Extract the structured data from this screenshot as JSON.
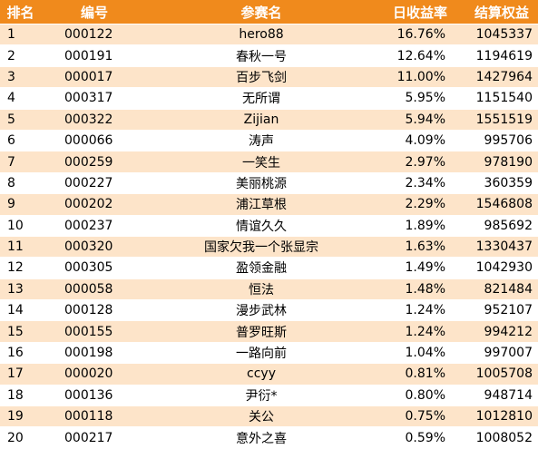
{
  "headers": {
    "rank": "排名",
    "id": "编号",
    "name": "参赛名",
    "return": "日收益率",
    "equity": "结算权益"
  },
  "rows": [
    {
      "rank": "1",
      "id": "000122",
      "name": "hero88",
      "return": "16.76%",
      "equity": "1045337"
    },
    {
      "rank": "2",
      "id": "000191",
      "name": "春秋一号",
      "return": "12.64%",
      "equity": "1194619"
    },
    {
      "rank": "3",
      "id": "000017",
      "name": "百步飞剑",
      "return": "11.00%",
      "equity": "1427964"
    },
    {
      "rank": "4",
      "id": "000317",
      "name": "无所谓",
      "return": "5.95%",
      "equity": "1151540"
    },
    {
      "rank": "5",
      "id": "000322",
      "name": "Zijian",
      "return": "5.94%",
      "equity": "1551519"
    },
    {
      "rank": "6",
      "id": "000066",
      "name": "涛声",
      "return": "4.09%",
      "equity": "995706"
    },
    {
      "rank": "7",
      "id": "000259",
      "name": "一笑生",
      "return": "2.97%",
      "equity": "978190"
    },
    {
      "rank": "8",
      "id": "000227",
      "name": "美丽桃源",
      "return": "2.34%",
      "equity": "360359"
    },
    {
      "rank": "9",
      "id": "000202",
      "name": "浦江草根",
      "return": "2.29%",
      "equity": "1546808"
    },
    {
      "rank": "10",
      "id": "000237",
      "name": "情谊久久",
      "return": "1.89%",
      "equity": "985692"
    },
    {
      "rank": "11",
      "id": "000320",
      "name": "国家欠我一个张显宗",
      "return": "1.63%",
      "equity": "1330437"
    },
    {
      "rank": "12",
      "id": "000305",
      "name": "盈领金融",
      "return": "1.49%",
      "equity": "1042930"
    },
    {
      "rank": "13",
      "id": "000058",
      "name": "恒法",
      "return": "1.48%",
      "equity": "821484"
    },
    {
      "rank": "14",
      "id": "000128",
      "name": "漫步武林",
      "return": "1.24%",
      "equity": "952107"
    },
    {
      "rank": "15",
      "id": "000155",
      "name": "普罗旺斯",
      "return": "1.24%",
      "equity": "994212"
    },
    {
      "rank": "16",
      "id": "000198",
      "name": "一路向前",
      "return": "1.04%",
      "equity": "997007"
    },
    {
      "rank": "17",
      "id": "000020",
      "name": "ccyy",
      "return": "0.81%",
      "equity": "1005708"
    },
    {
      "rank": "18",
      "id": "000136",
      "name": "尹衍*",
      "return": "0.80%",
      "equity": "948714"
    },
    {
      "rank": "19",
      "id": "000118",
      "name": "关公",
      "return": "0.75%",
      "equity": "1012810"
    },
    {
      "rank": "20",
      "id": "000217",
      "name": "意外之喜",
      "return": "0.59%",
      "equity": "1008052"
    }
  ],
  "colors": {
    "header_bg": "#f08a1c",
    "header_text": "#ffffff",
    "row_odd_bg": "#fde4c9",
    "row_even_bg": "#ffffff"
  }
}
